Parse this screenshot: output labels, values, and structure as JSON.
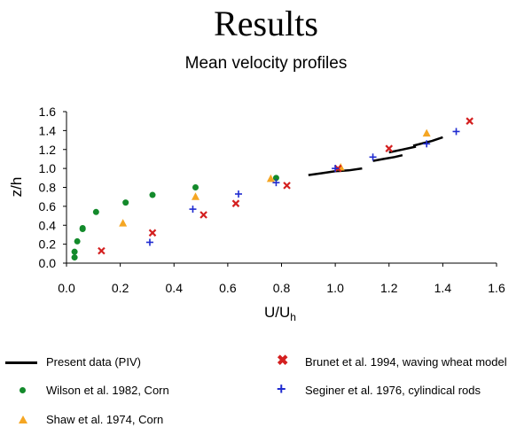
{
  "slide": {
    "title": "Results",
    "subtitle": "Mean velocity profiles"
  },
  "chart_data": {
    "type": "scatter",
    "title": "",
    "xlabel": "U/U",
    "xlabel_sub": "h",
    "ylabel": "z/h",
    "xlim": [
      0,
      1.6
    ],
    "ylim": [
      0,
      1.6
    ],
    "x_ticks": [
      "0.0",
      "0.2",
      "0.4",
      "0.6",
      "0.8",
      "1.0",
      "1.2",
      "1.4",
      "1.6"
    ],
    "y_ticks": [
      "0.0",
      "0.2",
      "0.4",
      "0.6",
      "0.8",
      "1.0",
      "1.2",
      "1.4",
      "1.6"
    ],
    "grid": false,
    "legend_placement": "bottom",
    "series": [
      {
        "name": "Present data (PIV)",
        "kind": "line",
        "color": "#000000",
        "segments": [
          [
            [
              0.9,
              0.93
            ],
            [
              0.95,
              0.95
            ],
            [
              1.0,
              0.97
            ],
            [
              1.05,
              0.98
            ],
            [
              1.1,
              1.0
            ]
          ],
          [
            [
              1.14,
              1.08
            ],
            [
              1.18,
              1.1
            ],
            [
              1.22,
              1.12
            ],
            [
              1.25,
              1.14
            ]
          ],
          [
            [
              1.2,
              1.17
            ],
            [
              1.25,
              1.2
            ],
            [
              1.3,
              1.23
            ]
          ],
          [
            [
              1.29,
              1.24
            ],
            [
              1.33,
              1.27
            ],
            [
              1.36,
              1.29
            ],
            [
              1.4,
              1.33
            ]
          ]
        ]
      },
      {
        "name": "Wilson et al. 1982, Corn",
        "kind": "dot",
        "color": "#138a2b",
        "points": [
          [
            0.03,
            0.06
          ],
          [
            0.03,
            0.12
          ],
          [
            0.04,
            0.23
          ],
          [
            0.06,
            0.36
          ],
          [
            0.06,
            0.37
          ],
          [
            0.11,
            0.54
          ],
          [
            0.22,
            0.64
          ],
          [
            0.32,
            0.72
          ],
          [
            0.48,
            0.8
          ],
          [
            0.78,
            0.9
          ]
        ]
      },
      {
        "name": "Shaw et al. 1974, Corn",
        "kind": "triangle",
        "color": "#f5a623",
        "points": [
          [
            0.21,
            0.42
          ],
          [
            0.48,
            0.7
          ],
          [
            0.76,
            0.89
          ],
          [
            1.02,
            1.01
          ],
          [
            1.34,
            1.37
          ]
        ]
      },
      {
        "name": "Brunet et al. 1994, waving wheat model",
        "kind": "x",
        "color": "#d42020",
        "points": [
          [
            0.13,
            0.13
          ],
          [
            0.32,
            0.32
          ],
          [
            0.51,
            0.51
          ],
          [
            0.63,
            0.63
          ],
          [
            0.82,
            0.82
          ],
          [
            1.01,
            1.0
          ],
          [
            1.2,
            1.21
          ],
          [
            1.5,
            1.5
          ]
        ]
      },
      {
        "name": "Seginer et al. 1976, cylindical rods",
        "kind": "plus",
        "color": "#1f2bd0",
        "points": [
          [
            0.31,
            0.22
          ],
          [
            0.47,
            0.57
          ],
          [
            0.64,
            0.73
          ],
          [
            0.78,
            0.85
          ],
          [
            1.0,
            1.0
          ],
          [
            1.14,
            1.12
          ],
          [
            1.34,
            1.26
          ],
          [
            1.45,
            1.39
          ]
        ]
      }
    ]
  }
}
